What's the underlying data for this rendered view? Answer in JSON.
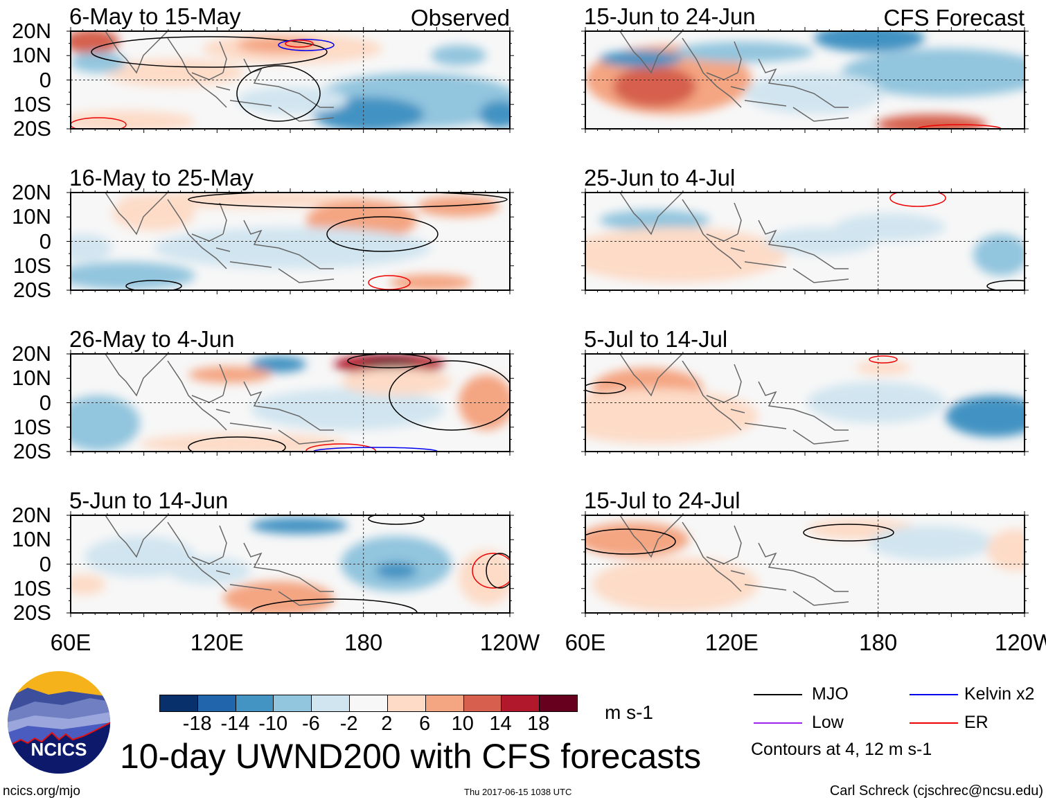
{
  "figure_title": "10-day UWND200 with CFS forecasts",
  "panels": [
    {
      "title": "6-May to 15-May",
      "label": "Observed",
      "type": "observed"
    },
    {
      "title": "16-May to 25-May",
      "label": "",
      "type": "observed"
    },
    {
      "title": "26-May to 4-Jun",
      "label": "",
      "type": "observed"
    },
    {
      "title": "5-Jun to 14-Jun",
      "label": "",
      "type": "observed"
    },
    {
      "title": "15-Jun to 24-Jun",
      "label": "CFS Forecast",
      "type": "forecast"
    },
    {
      "title": "25-Jun to 4-Jul",
      "label": "",
      "type": "forecast"
    },
    {
      "title": "5-Jul to 14-Jul",
      "label": "",
      "type": "forecast"
    },
    {
      "title": "15-Jul to 24-Jul",
      "label": "",
      "type": "forecast"
    }
  ],
  "lat_labels": [
    "20N",
    "10N",
    "0",
    "10S",
    "20S"
  ],
  "lon_labels": [
    "60E",
    "120E",
    "180",
    "120W"
  ],
  "colorbar": {
    "units": "m s-1",
    "ticks": [
      "-18",
      "-14",
      "-10",
      "-6",
      "-2",
      "2",
      "6",
      "10",
      "14",
      "18"
    ],
    "colors": [
      "#08306b",
      "#2166ac",
      "#4393c3",
      "#92c5de",
      "#d1e5f0",
      "#f7f7f7",
      "#fddbc7",
      "#f4a582",
      "#d6604d",
      "#b2182b",
      "#67001f"
    ]
  },
  "legend": {
    "items": [
      {
        "label": "MJO",
        "color": "#000000"
      },
      {
        "label": "Kelvin x2",
        "color": "#0000ee"
      },
      {
        "label": "Low",
        "color": "#a020f0"
      },
      {
        "label": "ER",
        "color": "#ee0000"
      }
    ],
    "note": "Contours at 4, 12 m s-1"
  },
  "logo": {
    "text": "NCICS"
  },
  "footer": {
    "url": "ncics.org/mjo",
    "timestamp": "Thu 2017-06-15 1038 UTC",
    "credit": "Carl Schreck (cjschrec@ncsu.edu)"
  }
}
